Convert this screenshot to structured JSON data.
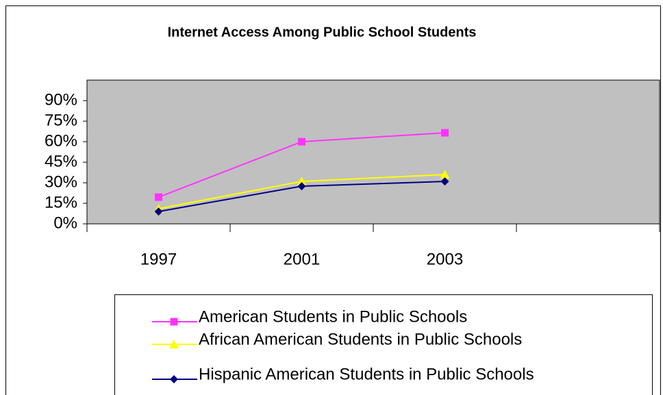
{
  "chart_data": {
    "type": "line",
    "title": "Internet Access Among Public School Students",
    "categories": [
      "1997",
      "2001",
      "2003",
      null
    ],
    "series": [
      {
        "name": "American Students in Public Schools",
        "color": "#ff33ff",
        "marker": "square",
        "values": [
          19.5,
          60,
          66.5,
          null
        ]
      },
      {
        "name": "African American Students in Public Schools",
        "color": "#ffff00",
        "marker": "triangle",
        "values": [
          11,
          31,
          36,
          null
        ]
      },
      {
        "name": "Hispanic American Students in Public Schools",
        "color": "#000080",
        "marker": "diamond",
        "values": [
          9,
          27.5,
          31,
          null
        ]
      }
    ],
    "ylim": [
      0,
      105
    ],
    "yticks": [
      {
        "value": 0,
        "label": "0%"
      },
      {
        "value": 15,
        "label": "15%"
      },
      {
        "value": 30,
        "label": "30%"
      },
      {
        "value": 45,
        "label": "45%"
      },
      {
        "value": 60,
        "label": "60%"
      },
      {
        "value": 75,
        "label": "75%"
      },
      {
        "value": 90,
        "label": "90%"
      }
    ],
    "plot_background": "#c0c0c0"
  }
}
